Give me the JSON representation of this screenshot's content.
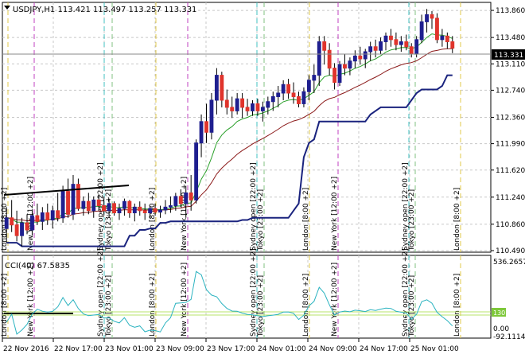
{
  "colors": {
    "background": "#ffffff",
    "grid": "#c8c8c8",
    "bull": "#1f1f8f",
    "bear": "#e0342c",
    "wick": "#000000",
    "ma_fast": "#2aa02a",
    "ma_slow": "#8b1a1a",
    "channel": "#1a237e",
    "cci": "#2bb3c0",
    "cci_level": "#b7e36a",
    "session_london": "#e0c84a",
    "session_newyork": "#c040c0",
    "session_sydney": "#40c0c0",
    "session_tokyo": "#80c080",
    "price_tag_bg": "#000000",
    "cci_tag_bg": "#7ec83a"
  },
  "header": {
    "dropdown_icon": "triangle-down-icon",
    "symbol_info": "USDJPY,H1  113.421 113.497 113.257 113.331"
  },
  "price_axis": {
    "ticks": [
      "113.860",
      "113.480",
      "113.110",
      "112.740",
      "112.360",
      "111.990",
      "111.620",
      "111.240",
      "110.860",
      "110.490"
    ],
    "current_price": "113.331"
  },
  "indicator": {
    "label": "CCI(40) 67.5835",
    "axis_ticks": [
      "536.2657",
      "130",
      "0.00",
      "-92.1114"
    ],
    "level_tag": "130"
  },
  "time_axis": {
    "labels": [
      "22 Nov 2016",
      "22 Nov 17:00",
      "23 Nov 01:00",
      "23 Nov 09:00",
      "23 Nov 17:00",
      "24 Nov 01:00",
      "24 Nov 09:00",
      "24 Nov 17:00",
      "25 Nov 01:00"
    ]
  },
  "sessions": {
    "london": "London [8:00 +2]",
    "new_york": "New York [12:00 +2]",
    "sydney": "Sydney open [22:00 +2]",
    "tokyo": "Tokyo [23:00 +2]"
  },
  "chart_data": {
    "type": "candlestick",
    "symbol": "USDJPY",
    "timeframe": "H1",
    "ylim": [
      110.49,
      113.95
    ],
    "candles": [
      {
        "o": 110.8,
        "h": 111.1,
        "l": 110.6,
        "c": 110.95
      },
      {
        "o": 110.95,
        "h": 111.2,
        "l": 110.75,
        "c": 110.85
      },
      {
        "o": 110.85,
        "h": 111.05,
        "l": 110.62,
        "c": 110.7
      },
      {
        "o": 110.7,
        "h": 110.95,
        "l": 110.55,
        "c": 110.88
      },
      {
        "o": 110.88,
        "h": 111.0,
        "l": 110.72,
        "c": 110.78
      },
      {
        "o": 110.78,
        "h": 111.05,
        "l": 110.7,
        "c": 110.98
      },
      {
        "o": 110.98,
        "h": 111.15,
        "l": 110.85,
        "c": 110.9
      },
      {
        "o": 110.9,
        "h": 111.1,
        "l": 110.78,
        "c": 111.02
      },
      {
        "o": 111.02,
        "h": 111.15,
        "l": 110.85,
        "c": 110.92
      },
      {
        "o": 110.92,
        "h": 111.12,
        "l": 110.8,
        "c": 111.05
      },
      {
        "o": 111.05,
        "h": 111.3,
        "l": 110.9,
        "c": 110.95
      },
      {
        "o": 110.95,
        "h": 111.4,
        "l": 110.88,
        "c": 111.32
      },
      {
        "o": 111.32,
        "h": 111.5,
        "l": 110.95,
        "c": 111.0
      },
      {
        "o": 111.0,
        "h": 111.55,
        "l": 110.92,
        "c": 111.42
      },
      {
        "o": 111.42,
        "h": 111.5,
        "l": 111.05,
        "c": 111.08
      },
      {
        "o": 111.08,
        "h": 111.25,
        "l": 110.98,
        "c": 111.18
      },
      {
        "o": 111.18,
        "h": 111.3,
        "l": 111.0,
        "c": 111.05
      },
      {
        "o": 111.05,
        "h": 111.25,
        "l": 110.95,
        "c": 111.2
      },
      {
        "o": 111.2,
        "h": 111.28,
        "l": 111.05,
        "c": 111.12
      },
      {
        "o": 111.12,
        "h": 111.25,
        "l": 110.98,
        "c": 111.05
      },
      {
        "o": 111.05,
        "h": 111.22,
        "l": 110.95,
        "c": 111.15
      },
      {
        "o": 111.15,
        "h": 111.18,
        "l": 110.98,
        "c": 111.02
      },
      {
        "o": 111.02,
        "h": 111.15,
        "l": 110.92,
        "c": 111.08
      },
      {
        "o": 111.08,
        "h": 111.22,
        "l": 110.98,
        "c": 111.18
      },
      {
        "o": 111.18,
        "h": 111.2,
        "l": 110.95,
        "c": 111.02
      },
      {
        "o": 111.02,
        "h": 111.15,
        "l": 110.9,
        "c": 111.1
      },
      {
        "o": 111.1,
        "h": 111.18,
        "l": 110.98,
        "c": 111.05
      },
      {
        "o": 111.05,
        "h": 111.15,
        "l": 110.92,
        "c": 111.02
      },
      {
        "o": 111.02,
        "h": 111.12,
        "l": 110.95,
        "c": 111.08
      },
      {
        "o": 111.08,
        "h": 111.15,
        "l": 110.98,
        "c": 111.03
      },
      {
        "o": 111.03,
        "h": 111.12,
        "l": 110.95,
        "c": 111.06
      },
      {
        "o": 111.06,
        "h": 111.2,
        "l": 111.0,
        "c": 111.1
      },
      {
        "o": 111.1,
        "h": 111.25,
        "l": 111.02,
        "c": 111.12
      },
      {
        "o": 111.12,
        "h": 111.3,
        "l": 111.05,
        "c": 111.25
      },
      {
        "o": 111.25,
        "h": 111.35,
        "l": 111.1,
        "c": 111.15
      },
      {
        "o": 111.15,
        "h": 111.4,
        "l": 110.95,
        "c": 111.3
      },
      {
        "o": 111.3,
        "h": 111.55,
        "l": 111.05,
        "c": 111.2
      },
      {
        "o": 111.2,
        "h": 112.05,
        "l": 111.15,
        "c": 112.0
      },
      {
        "o": 112.0,
        "h": 112.4,
        "l": 111.8,
        "c": 112.3
      },
      {
        "o": 112.3,
        "h": 112.55,
        "l": 112.0,
        "c": 112.15
      },
      {
        "o": 112.15,
        "h": 112.7,
        "l": 112.05,
        "c": 112.6
      },
      {
        "o": 112.6,
        "h": 113.05,
        "l": 112.4,
        "c": 112.95
      },
      {
        "o": 112.95,
        "h": 113.0,
        "l": 112.5,
        "c": 112.6
      },
      {
        "o": 112.6,
        "h": 112.75,
        "l": 112.4,
        "c": 112.5
      },
      {
        "o": 112.5,
        "h": 112.65,
        "l": 112.35,
        "c": 112.45
      },
      {
        "o": 112.45,
        "h": 112.7,
        "l": 112.4,
        "c": 112.62
      },
      {
        "o": 112.62,
        "h": 112.7,
        "l": 112.35,
        "c": 112.5
      },
      {
        "o": 112.5,
        "h": 112.62,
        "l": 112.38,
        "c": 112.45
      },
      {
        "o": 112.45,
        "h": 112.6,
        "l": 112.38,
        "c": 112.55
      },
      {
        "o": 112.55,
        "h": 112.62,
        "l": 112.38,
        "c": 112.45
      },
      {
        "o": 112.45,
        "h": 112.58,
        "l": 112.3,
        "c": 112.5
      },
      {
        "o": 112.5,
        "h": 112.65,
        "l": 112.4,
        "c": 112.58
      },
      {
        "o": 112.58,
        "h": 112.72,
        "l": 112.45,
        "c": 112.65
      },
      {
        "o": 112.65,
        "h": 112.8,
        "l": 112.5,
        "c": 112.7
      },
      {
        "o": 112.7,
        "h": 112.88,
        "l": 112.6,
        "c": 112.82
      },
      {
        "o": 112.82,
        "h": 112.9,
        "l": 112.62,
        "c": 112.7
      },
      {
        "o": 112.7,
        "h": 112.85,
        "l": 112.55,
        "c": 112.65
      },
      {
        "o": 112.65,
        "h": 112.72,
        "l": 112.5,
        "c": 112.55
      },
      {
        "o": 112.55,
        "h": 112.78,
        "l": 112.5,
        "c": 112.72
      },
      {
        "o": 112.72,
        "h": 112.95,
        "l": 112.6,
        "c": 112.88
      },
      {
        "o": 112.88,
        "h": 113.1,
        "l": 112.7,
        "c": 112.95
      },
      {
        "o": 112.95,
        "h": 113.5,
        "l": 112.8,
        "c": 113.42
      },
      {
        "o": 113.42,
        "h": 113.5,
        "l": 113.1,
        "c": 113.3
      },
      {
        "o": 113.3,
        "h": 113.4,
        "l": 112.95,
        "c": 113.05
      },
      {
        "o": 113.05,
        "h": 113.12,
        "l": 112.75,
        "c": 112.85
      },
      {
        "o": 112.85,
        "h": 113.15,
        "l": 112.8,
        "c": 113.1
      },
      {
        "o": 113.1,
        "h": 113.25,
        "l": 112.95,
        "c": 113.05
      },
      {
        "o": 113.05,
        "h": 113.2,
        "l": 112.95,
        "c": 113.15
      },
      {
        "o": 113.15,
        "h": 113.3,
        "l": 113.05,
        "c": 113.22
      },
      {
        "o": 113.22,
        "h": 113.35,
        "l": 113.1,
        "c": 113.18
      },
      {
        "o": 113.18,
        "h": 113.32,
        "l": 113.05,
        "c": 113.28
      },
      {
        "o": 113.28,
        "h": 113.42,
        "l": 113.15,
        "c": 113.35
      },
      {
        "o": 113.35,
        "h": 113.45,
        "l": 113.2,
        "c": 113.3
      },
      {
        "o": 113.3,
        "h": 113.48,
        "l": 113.25,
        "c": 113.42
      },
      {
        "o": 113.42,
        "h": 113.55,
        "l": 113.3,
        "c": 113.5
      },
      {
        "o": 113.5,
        "h": 113.6,
        "l": 113.35,
        "c": 113.45
      },
      {
        "o": 113.45,
        "h": 113.55,
        "l": 113.3,
        "c": 113.38
      },
      {
        "o": 113.38,
        "h": 113.5,
        "l": 113.28,
        "c": 113.42
      },
      {
        "o": 113.42,
        "h": 113.52,
        "l": 113.3,
        "c": 113.35
      },
      {
        "o": 113.35,
        "h": 113.4,
        "l": 113.2,
        "c": 113.25
      },
      {
        "o": 113.25,
        "h": 113.5,
        "l": 113.2,
        "c": 113.45
      },
      {
        "o": 113.45,
        "h": 113.8,
        "l": 113.4,
        "c": 113.7
      },
      {
        "o": 113.7,
        "h": 113.88,
        "l": 113.55,
        "c": 113.8
      },
      {
        "o": 113.8,
        "h": 113.85,
        "l": 113.6,
        "c": 113.75
      },
      {
        "o": 113.75,
        "h": 113.82,
        "l": 113.4,
        "c": 113.45
      },
      {
        "o": 113.45,
        "h": 113.6,
        "l": 113.35,
        "c": 113.5
      },
      {
        "o": 113.5,
        "h": 113.55,
        "l": 113.32,
        "c": 113.42
      },
      {
        "o": 113.42,
        "h": 113.5,
        "l": 113.26,
        "c": 113.33
      }
    ]
  }
}
